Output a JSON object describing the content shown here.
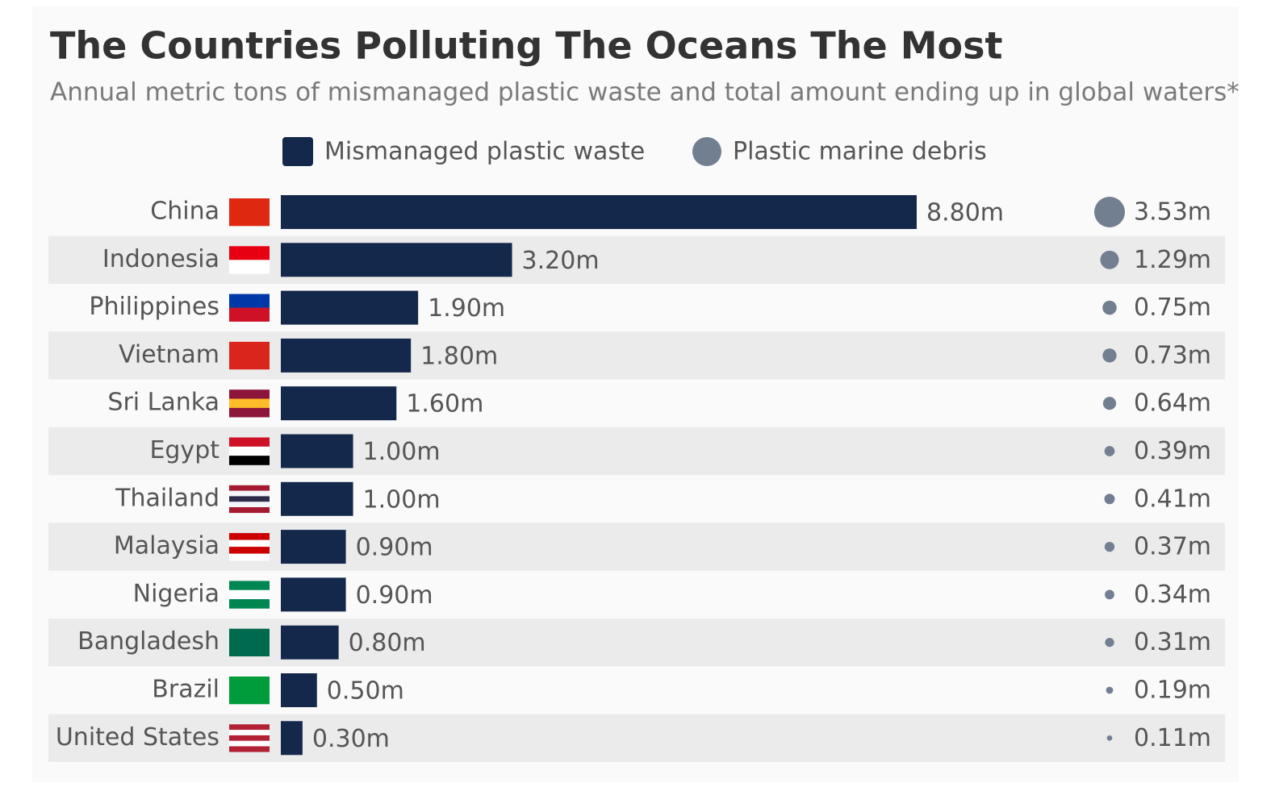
{
  "chart_data": {
    "type": "bar_bubble",
    "title": "The Countries Polluting The Oceans The Most",
    "subtitle": "Annual metric tons of mismanaged plastic waste and total amount ending up in global waters*",
    "categories": [
      "China",
      "Indonesia",
      "Philippines",
      "Vietnam",
      "Sri Lanka",
      "Egypt",
      "Thailand",
      "Malaysia",
      "Nigeria",
      "Bangladesh",
      "Brazil",
      "United States"
    ],
    "series": [
      {
        "name": "Mismanaged plastic waste",
        "color": "#14284b",
        "values": [
          8.8,
          3.2,
          1.9,
          1.8,
          1.6,
          1.0,
          1.0,
          0.9,
          0.9,
          0.8,
          0.5,
          0.3
        ],
        "value_labels": [
          "8.80m",
          "3.20m",
          "1.90m",
          "1.80m",
          "1.60m",
          "1.00m",
          "1.00m",
          "0.90m",
          "0.90m",
          "0.80m",
          "0.50m",
          "0.30m"
        ]
      },
      {
        "name": "Plastic marine debris",
        "color": "#717f91",
        "values": [
          3.53,
          1.29,
          0.75,
          0.73,
          0.64,
          0.39,
          0.41,
          0.37,
          0.34,
          0.31,
          0.19,
          0.11
        ],
        "value_labels": [
          "3.53m",
          "1.29m",
          "0.75m",
          "0.73m",
          "0.64m",
          "0.39m",
          "0.41m",
          "0.37m",
          "0.34m",
          "0.31m",
          "0.19m",
          "0.11m"
        ]
      }
    ]
  }
}
